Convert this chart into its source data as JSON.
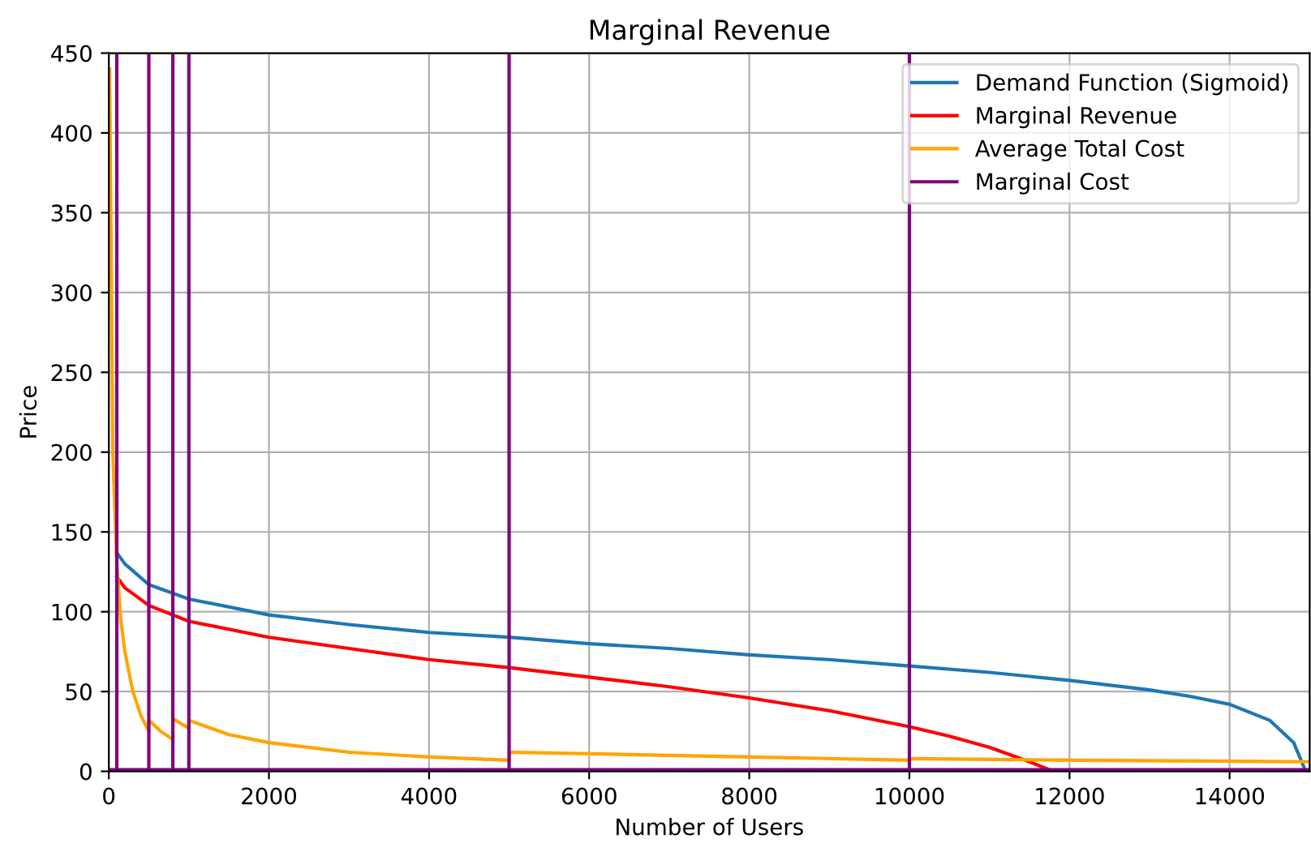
{
  "chart_data": {
    "type": "line",
    "title": "Marginal Revenue",
    "xlabel": "Number of Users",
    "ylabel": "Price",
    "xlim": [
      0,
      15000
    ],
    "ylim": [
      0,
      450
    ],
    "xticks": [
      0,
      2000,
      4000,
      6000,
      8000,
      10000,
      12000,
      14000
    ],
    "yticks": [
      0,
      50,
      100,
      150,
      200,
      250,
      300,
      350,
      400,
      450
    ],
    "grid": true,
    "legend": "top right",
    "series": [
      {
        "name": "Demand Function (Sigmoid)",
        "color": "#1f77b4",
        "x": [
          100,
          200,
          500,
          1000,
          2000,
          3000,
          4000,
          5000,
          6000,
          7000,
          8000,
          9000,
          10000,
          11000,
          12000,
          13000,
          13500,
          14000,
          14500,
          14800,
          14950
        ],
        "values": [
          137,
          130,
          117,
          108,
          98,
          92,
          87,
          84,
          80,
          77,
          73,
          70,
          66,
          62,
          57,
          51,
          47,
          42,
          32,
          18,
          0
        ]
      },
      {
        "name": "Marginal Revenue",
        "color": "#ff0000",
        "x": [
          100,
          200,
          500,
          1000,
          2000,
          3000,
          4000,
          5000,
          6000,
          7000,
          8000,
          9000,
          10000,
          10500,
          11000,
          11500,
          11800
        ],
        "values": [
          122,
          115,
          104,
          94,
          84,
          77,
          70,
          65,
          59,
          53,
          46,
          38,
          28,
          22,
          15,
          6,
          0
        ]
      },
      {
        "name": "Average Total Cost",
        "color": "#ffa500",
        "x": [
          10,
          50,
          100,
          150,
          200,
          300,
          400,
          500,
          500,
          650,
          800,
          800,
          1000,
          1000,
          1500,
          2000,
          3000,
          4000,
          5000,
          5000,
          6000,
          8000,
          10000,
          10000,
          12000,
          15000
        ],
        "values": [
          440,
          200,
          130,
          95,
          75,
          50,
          35,
          25,
          32,
          25,
          20,
          33,
          27,
          32,
          23,
          18,
          12,
          9,
          7,
          12,
          11,
          9,
          7,
          8,
          7,
          6
        ]
      },
      {
        "name": "Marginal Cost",
        "color": "#800080",
        "x": [
          0,
          100,
          100,
          100,
          500,
          500,
          500,
          800,
          800,
          800,
          1000,
          1000,
          1000,
          5000,
          5000,
          5000,
          10000,
          10000,
          10000,
          15000
        ],
        "values": [
          1,
          1,
          450,
          1,
          1,
          450,
          1,
          1,
          450,
          1,
          1,
          450,
          1,
          1,
          450,
          1,
          1,
          450,
          1,
          1
        ]
      }
    ]
  }
}
